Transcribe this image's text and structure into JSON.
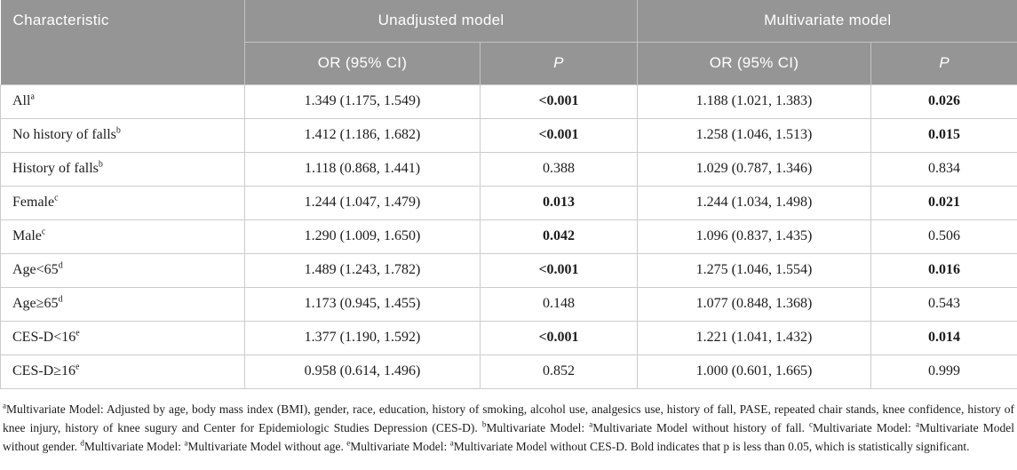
{
  "table": {
    "header": {
      "characteristic": "Characteristic",
      "group1": "Unadjusted model",
      "group2": "Multivariate model",
      "or_label": "OR (95% CI)",
      "p_label": "P"
    },
    "rows": [
      {
        "label": "All",
        "sup": "a",
        "u_or": "1.349 (1.175, 1.549)",
        "u_p": "<0.001",
        "u_p_bold": true,
        "m_or": "1.188 (1.021, 1.383)",
        "m_p": "0.026",
        "m_p_bold": true
      },
      {
        "label": "No history of falls",
        "sup": "b",
        "u_or": "1.412 (1.186, 1.682)",
        "u_p": "<0.001",
        "u_p_bold": true,
        "m_or": "1.258 (1.046, 1.513)",
        "m_p": "0.015",
        "m_p_bold": true
      },
      {
        "label": "History of falls",
        "sup": "b",
        "u_or": "1.118 (0.868, 1.441)",
        "u_p": "0.388",
        "u_p_bold": false,
        "m_or": "1.029 (0.787, 1.346)",
        "m_p": "0.834",
        "m_p_bold": false
      },
      {
        "label": "Female",
        "sup": "c",
        "u_or": "1.244 (1.047, 1.479)",
        "u_p": "0.013",
        "u_p_bold": true,
        "m_or": "1.244 (1.034, 1.498)",
        "m_p": "0.021",
        "m_p_bold": true
      },
      {
        "label": "Male",
        "sup": "c",
        "u_or": "1.290 (1.009, 1.650)",
        "u_p": "0.042",
        "u_p_bold": true,
        "m_or": "1.096 (0.837, 1.435)",
        "m_p": "0.506",
        "m_p_bold": false
      },
      {
        "label": "Age<65",
        "sup": "d",
        "u_or": "1.489 (1.243, 1.782)",
        "u_p": "<0.001",
        "u_p_bold": true,
        "m_or": "1.275 (1.046, 1.554)",
        "m_p": "0.016",
        "m_p_bold": true
      },
      {
        "label": "Age≥65",
        "sup": "d",
        "u_or": "1.173 (0.945, 1.455)",
        "u_p": "0.148",
        "u_p_bold": false,
        "m_or": "1.077 (0.848, 1.368)",
        "m_p": "0.543",
        "m_p_bold": false
      },
      {
        "label": "CES-D<16",
        "sup": "e",
        "u_or": "1.377 (1.190, 1.592)",
        "u_p": "<0.001",
        "u_p_bold": true,
        "m_or": "1.221 (1.041, 1.432)",
        "m_p": "0.014",
        "m_p_bold": true
      },
      {
        "label": "CES-D≥16",
        "sup": "e",
        "u_or": "0.958 (0.614, 1.496)",
        "u_p": "0.852",
        "u_p_bold": false,
        "m_or": "1.000 (0.601, 1.665)",
        "m_p": "0.999",
        "m_p_bold": false
      }
    ]
  },
  "footnotes": {
    "tokens": [
      {
        "sup": "a"
      },
      {
        "text": "Multivariate Model: Adjusted by age, body mass index (BMI), gender, race, education, history of smoking, alcohol use, analgesics use, history of fall, PASE, repeated chair stands, knee confidence, history of knee injury, history of knee sugury and Center for Epidemiologic Studies Depression (CES-D). "
      },
      {
        "sup": "b"
      },
      {
        "text": "Multivariate Model: "
      },
      {
        "sup": "a"
      },
      {
        "text": "Multivariate Model without history of fall. "
      },
      {
        "sup": "c"
      },
      {
        "text": "Multivariate Model: "
      },
      {
        "sup": "a"
      },
      {
        "text": "Multivariate Model without gender. "
      },
      {
        "sup": "d"
      },
      {
        "text": "Multivariate Model: "
      },
      {
        "sup": "a"
      },
      {
        "text": "Multivariate Model without age. "
      },
      {
        "sup": "e"
      },
      {
        "text": "Multivariate Model: "
      },
      {
        "sup": "a"
      },
      {
        "text": "Multivariate Model without CES-D. Bold indicates that p is less than 0.05, which is statistically significant."
      }
    ]
  },
  "colors": {
    "header_bg": "#959595",
    "header_text": "#ffffff",
    "header_divider": "#c3c3c3",
    "body_border": "#cccccc",
    "body_text": "#1c1c1c"
  }
}
